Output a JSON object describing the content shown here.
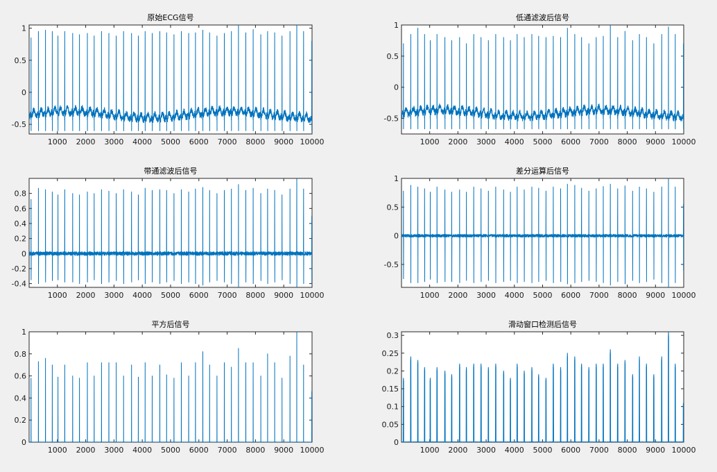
{
  "figure": {
    "background": "#f0f0f0",
    "trace_color": "#0072BD"
  },
  "chart_data": [
    {
      "type": "line",
      "title": "原始ECG信号",
      "xlim": [
        1,
        10000
      ],
      "ylim": [
        -0.65,
        1.05
      ],
      "xticks": [
        1000,
        2000,
        3000,
        4000,
        5000,
        6000,
        7000,
        8000,
        9000,
        10000
      ],
      "yticks": [
        -0.5,
        0,
        0.5,
        1
      ],
      "ytick_labels": [
        "-0.5",
        "0",
        "0.5",
        "1"
      ],
      "signal": {
        "kind": "raw",
        "baseline": -0.38,
        "beat_positions": [
          70,
          330,
          580,
          820,
          1020,
          1260,
          1540,
          1780,
          2060,
          2300,
          2560,
          2820,
          3080,
          3340,
          3620,
          3860,
          4100,
          4350,
          4620,
          4860,
          5120,
          5380,
          5640,
          5880,
          6140,
          6380,
          6640,
          6900,
          7150,
          7400,
          7660,
          7920,
          8190,
          8430,
          8680,
          8940,
          9220,
          9460,
          9700,
          9990
        ],
        "peak_values": [
          0.85,
          0.95,
          0.97,
          0.95,
          0.88,
          0.95,
          0.92,
          0.9,
          0.92,
          0.88,
          0.95,
          0.92,
          0.88,
          0.95,
          0.92,
          0.88,
          0.95,
          0.92,
          0.95,
          0.93,
          0.9,
          0.95,
          0.92,
          0.93,
          0.97,
          0.93,
          0.88,
          0.92,
          0.95,
          1.05,
          0.93,
          0.98,
          0.9,
          0.95,
          0.93,
          0.88,
          0.95,
          1.05,
          0.95,
          0.8
        ]
      }
    },
    {
      "type": "line",
      "title": "低通滤波后信号",
      "xlim": [
        1,
        10000
      ],
      "ylim": [
        -0.75,
        1.0
      ],
      "xticks": [
        1000,
        2000,
        3000,
        4000,
        5000,
        6000,
        7000,
        8000,
        9000,
        10000
      ],
      "yticks": [
        -0.5,
        0,
        0.5,
        1
      ],
      "ytick_labels": [
        "-0.5",
        "0",
        "0.5",
        "1"
      ],
      "signal": {
        "kind": "raw",
        "baseline": -0.45,
        "beat_positions": [
          70,
          330,
          580,
          820,
          1020,
          1260,
          1540,
          1780,
          2060,
          2300,
          2560,
          2820,
          3080,
          3340,
          3620,
          3860,
          4100,
          4350,
          4620,
          4860,
          5120,
          5380,
          5640,
          5880,
          6140,
          6380,
          6640,
          6900,
          7150,
          7400,
          7660,
          7920,
          8190,
          8430,
          8680,
          8940,
          9220,
          9460,
          9700,
          9990
        ],
        "peak_values": [
          0.7,
          0.85,
          0.95,
          0.85,
          0.75,
          0.85,
          0.8,
          0.75,
          0.8,
          0.7,
          0.85,
          0.8,
          0.75,
          0.85,
          0.8,
          0.75,
          0.85,
          0.8,
          0.85,
          0.82,
          0.8,
          0.82,
          0.8,
          0.95,
          0.85,
          0.8,
          0.7,
          0.8,
          0.82,
          1.0,
          0.8,
          0.9,
          0.75,
          0.85,
          0.8,
          0.7,
          0.85,
          0.97,
          0.85,
          0.7
        ]
      }
    },
    {
      "type": "line",
      "title": "带通滤波后信号",
      "xlim": [
        1,
        10000
      ],
      "ylim": [
        -0.45,
        1.0
      ],
      "xticks": [
        1000,
        2000,
        3000,
        4000,
        5000,
        6000,
        7000,
        8000,
        9000,
        10000
      ],
      "yticks": [
        -0.4,
        -0.2,
        0,
        0.2,
        0.4,
        0.6,
        0.8
      ],
      "ytick_labels": [
        "-0.4",
        "-0.2",
        "0",
        "0.2",
        "0.4",
        "0.6",
        "0.8"
      ],
      "signal": {
        "kind": "bandpass",
        "baseline": 0.0,
        "beat_positions": [
          70,
          330,
          580,
          820,
          1020,
          1260,
          1540,
          1780,
          2060,
          2300,
          2560,
          2820,
          3080,
          3340,
          3620,
          3860,
          4100,
          4350,
          4620,
          4860,
          5120,
          5380,
          5640,
          5880,
          6140,
          6380,
          6640,
          6900,
          7150,
          7400,
          7660,
          7920,
          8190,
          8430,
          8680,
          8940,
          9220,
          9460,
          9700,
          9990
        ],
        "peak_values": [
          0.72,
          0.87,
          0.85,
          0.82,
          0.78,
          0.85,
          0.8,
          0.78,
          0.82,
          0.8,
          0.85,
          0.83,
          0.8,
          0.85,
          0.82,
          0.78,
          0.87,
          0.84,
          0.85,
          0.84,
          0.8,
          0.85,
          0.82,
          0.86,
          0.88,
          0.84,
          0.8,
          0.84,
          0.86,
          0.92,
          0.84,
          0.87,
          0.8,
          0.86,
          0.84,
          0.78,
          0.86,
          1.0,
          0.86,
          0.5
        ],
        "trough_values": [
          -0.35,
          -0.4,
          -0.38,
          -0.36,
          -0.35,
          -0.38,
          -0.38,
          -0.4,
          -0.38,
          -0.35,
          -0.4,
          -0.38,
          -0.36,
          -0.4,
          -0.38,
          -0.35,
          -0.4,
          -0.38,
          -0.4,
          -0.38,
          -0.36,
          -0.4,
          -0.38,
          -0.4,
          -0.42,
          -0.38,
          -0.36,
          -0.38,
          -0.4,
          -0.45,
          -0.38,
          -0.4,
          -0.36,
          -0.4,
          -0.38,
          -0.35,
          -0.4,
          -0.45,
          -0.4,
          -0.4
        ]
      }
    },
    {
      "type": "line",
      "title": "差分运算后信号",
      "xlim": [
        1,
        10000
      ],
      "ylim": [
        -0.9,
        1.0
      ],
      "xticks": [
        1000,
        2000,
        3000,
        4000,
        5000,
        6000,
        7000,
        8000,
        9000,
        10000
      ],
      "yticks": [
        -0.5,
        0,
        0.5,
        1
      ],
      "ytick_labels": [
        "-0.5",
        "0",
        "0.5",
        "1"
      ],
      "signal": {
        "kind": "diff",
        "baseline": 0.0,
        "beat_positions": [
          70,
          330,
          580,
          820,
          1020,
          1260,
          1540,
          1780,
          2060,
          2300,
          2560,
          2820,
          3080,
          3340,
          3620,
          3860,
          4100,
          4350,
          4620,
          4860,
          5120,
          5380,
          5640,
          5880,
          6140,
          6380,
          6640,
          6900,
          7150,
          7400,
          7660,
          7920,
          8190,
          8430,
          8680,
          8940,
          9220,
          9460,
          9700,
          9990
        ],
        "peak_values": [
          0.78,
          0.88,
          0.85,
          0.82,
          0.76,
          0.85,
          0.8,
          0.76,
          0.8,
          0.76,
          0.85,
          0.82,
          0.78,
          0.85,
          0.8,
          0.76,
          0.85,
          0.8,
          0.85,
          0.83,
          0.78,
          0.85,
          0.82,
          0.9,
          0.88,
          0.83,
          0.78,
          0.82,
          0.86,
          0.9,
          0.82,
          0.87,
          0.78,
          0.85,
          0.82,
          0.76,
          0.85,
          1.0,
          0.85,
          0.55
        ],
        "trough_values": [
          -0.75,
          -0.82,
          -0.82,
          -0.8,
          -0.76,
          -0.82,
          -0.8,
          -0.8,
          -0.82,
          -0.78,
          -0.82,
          -0.8,
          -0.78,
          -0.82,
          -0.8,
          -0.78,
          -0.82,
          -0.8,
          -0.82,
          -0.8,
          -0.78,
          -0.82,
          -0.8,
          -0.84,
          -0.82,
          -0.8,
          -0.78,
          -0.8,
          -0.82,
          -0.86,
          -0.8,
          -0.84,
          -0.78,
          -0.82,
          -0.8,
          -0.76,
          -0.82,
          -0.9,
          -0.82,
          -0.6
        ]
      }
    },
    {
      "type": "line",
      "title": "平方后信号",
      "xlim": [
        1,
        10000
      ],
      "ylim": [
        0,
        1.0
      ],
      "xticks": [
        1000,
        2000,
        3000,
        4000,
        5000,
        6000,
        7000,
        8000,
        9000,
        10000
      ],
      "yticks": [
        0,
        0.2,
        0.4,
        0.6,
        0.8,
        1
      ],
      "ytick_labels": [
        "0",
        "0.2",
        "0.4",
        "0.6",
        "0.8",
        "1"
      ],
      "signal": {
        "kind": "pulse",
        "baseline": 0.0,
        "beat_positions": [
          70,
          330,
          580,
          820,
          1020,
          1260,
          1540,
          1780,
          2060,
          2300,
          2560,
          2820,
          3080,
          3340,
          3620,
          3860,
          4100,
          4350,
          4620,
          4860,
          5120,
          5380,
          5640,
          5880,
          6140,
          6380,
          6640,
          6900,
          7150,
          7400,
          7660,
          7920,
          8190,
          8430,
          8680,
          8940,
          9220,
          9460,
          9700,
          9990
        ],
        "peak_values": [
          0.58,
          0.73,
          0.76,
          0.7,
          0.59,
          0.7,
          0.6,
          0.58,
          0.72,
          0.6,
          0.72,
          0.72,
          0.72,
          0.6,
          0.7,
          0.59,
          0.72,
          0.6,
          0.7,
          0.61,
          0.58,
          0.72,
          0.6,
          0.72,
          0.82,
          0.7,
          0.6,
          0.72,
          0.68,
          0.85,
          0.72,
          0.72,
          0.6,
          0.8,
          0.72,
          0.58,
          0.78,
          1.0,
          0.7,
          0.46
        ]
      }
    },
    {
      "type": "line",
      "title": "滑动窗口检测后信号",
      "xlim": [
        1,
        10000
      ],
      "ylim": [
        0,
        0.31
      ],
      "xticks": [
        1000,
        2000,
        3000,
        4000,
        5000,
        6000,
        7000,
        8000,
        9000,
        10000
      ],
      "yticks": [
        0,
        0.05,
        0.1,
        0.15,
        0.2,
        0.25,
        0.3
      ],
      "ytick_labels": [
        "0",
        "0.05",
        "0.1",
        "0.15",
        "0.2",
        "0.25",
        "0.3"
      ],
      "signal": {
        "kind": "window",
        "baseline": 0.0,
        "beat_positions": [
          70,
          330,
          580,
          820,
          1020,
          1260,
          1540,
          1780,
          2060,
          2300,
          2560,
          2820,
          3080,
          3340,
          3620,
          3860,
          4100,
          4350,
          4620,
          4860,
          5120,
          5380,
          5640,
          5880,
          6140,
          6380,
          6640,
          6900,
          7150,
          7400,
          7660,
          7920,
          8190,
          8430,
          8680,
          8940,
          9220,
          9460,
          9700,
          9990
        ],
        "peak_values": [
          0.18,
          0.24,
          0.23,
          0.21,
          0.18,
          0.21,
          0.2,
          0.19,
          0.22,
          0.21,
          0.22,
          0.22,
          0.21,
          0.22,
          0.2,
          0.18,
          0.22,
          0.2,
          0.21,
          0.19,
          0.18,
          0.22,
          0.21,
          0.25,
          0.24,
          0.22,
          0.21,
          0.22,
          0.22,
          0.26,
          0.22,
          0.23,
          0.19,
          0.24,
          0.22,
          0.19,
          0.24,
          0.31,
          0.22,
          0.11
        ]
      }
    }
  ]
}
